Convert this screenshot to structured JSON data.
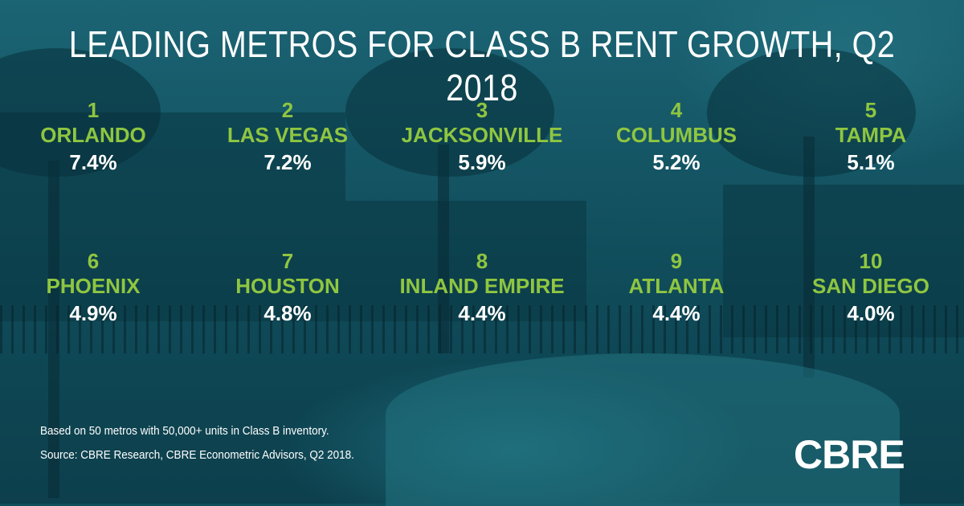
{
  "title": "LEADING METROS FOR CLASS B RENT GROWTH, Q2 2018",
  "rankings": [
    {
      "rank": "1",
      "metro": "ORLANDO",
      "growth": "7.4%"
    },
    {
      "rank": "2",
      "metro": "LAS VEGAS",
      "growth": "7.2%"
    },
    {
      "rank": "3",
      "metro": "JACKSONVILLE",
      "growth": "5.9%"
    },
    {
      "rank": "4",
      "metro": "COLUMBUS",
      "growth": "5.2%"
    },
    {
      "rank": "5",
      "metro": "TAMPA",
      "growth": "5.1%"
    },
    {
      "rank": "6",
      "metro": "PHOENIX",
      "growth": "4.9%"
    },
    {
      "rank": "7",
      "metro": "HOUSTON",
      "growth": "4.8%"
    },
    {
      "rank": "8",
      "metro": "INLAND EMPIRE",
      "growth": "4.4%"
    },
    {
      "rank": "9",
      "metro": "ATLANTA",
      "growth": "4.4%"
    },
    {
      "rank": "10",
      "metro": "SAN DIEGO",
      "growth": "4.0%"
    }
  ],
  "notes": {
    "basis": "Based on 50 metros with 50,000+ units in Class B inventory.",
    "source": "Source: CBRE Research, CBRE Econometric Advisors, Q2 2018."
  },
  "logo_text": "CBRE",
  "colors": {
    "accent_green": "#8fc640",
    "text_white": "#ffffff",
    "background_teal": "#0f4f5c"
  }
}
